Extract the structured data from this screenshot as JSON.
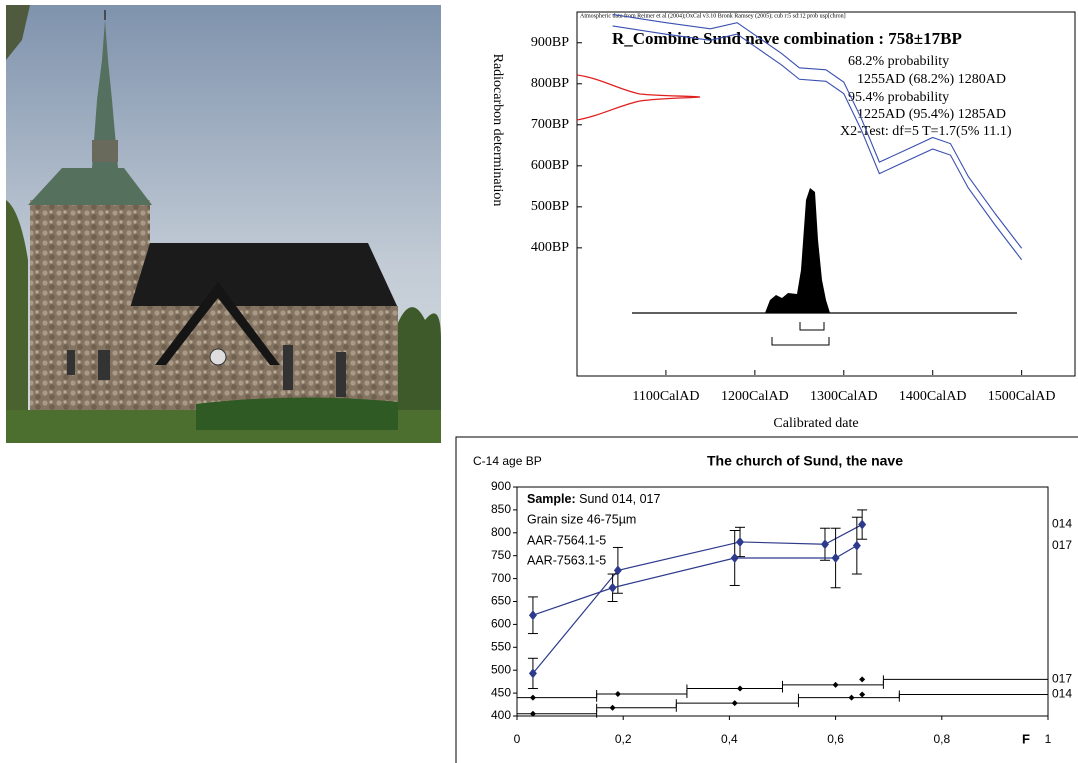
{
  "chart_data": [
    {
      "type": "line",
      "note": "Atmospheric data from Reimer et al (2004);OxCal v3.10 Bronk Ramsey (2005); cub r:5 sd:12 prob usp[chron]",
      "title": "R_Combine Sund nave combination : 758±17BP",
      "annotations": [
        "68.2% probability",
        "1255AD (68.2%) 1280AD",
        "95.4% probability",
        "1225AD (95.4%) 1285AD",
        "X2-Test: df=5 T=1.7(5% 11.1)"
      ],
      "xlabel": "Calibrated date",
      "ylabel": "Radiocarbon determination",
      "x": [
        1040,
        1100,
        1150,
        1180,
        1200,
        1230,
        1250,
        1280,
        1300,
        1320,
        1340,
        1370,
        1400,
        1420,
        1440,
        1470,
        1500
      ],
      "series": [
        {
          "color": "#3a4fb0",
          "values": [
            969,
            949,
            934,
            949,
            919,
            874,
            839,
            834,
            804,
            714,
            609,
            639,
            669,
            654,
            574,
            484,
            399
          ]
        },
        {
          "color": "#3a4fb0",
          "values": [
            941,
            921,
            906,
            921,
            891,
            846,
            811,
            806,
            776,
            686,
            581,
            611,
            641,
            626,
            546,
            456,
            371
          ]
        }
      ],
      "xlim": [
        1000,
        1560
      ],
      "ylim": [
        90,
        975
      ],
      "xticks": [
        {
          "value": 1100,
          "label": "1100CalAD"
        },
        {
          "value": 1200,
          "label": "1200CalAD"
        },
        {
          "value": 1300,
          "label": "1300CalAD"
        },
        {
          "value": 1400,
          "label": "1400CalAD"
        },
        {
          "value": 1500,
          "label": "1500CalAD"
        }
      ],
      "yticks": [
        {
          "value": 400,
          "label": "400BP"
        },
        {
          "value": 500,
          "label": "500BP"
        },
        {
          "value": 600,
          "label": "600BP"
        },
        {
          "value": 700,
          "label": "700BP"
        },
        {
          "value": 800,
          "label": "800BP"
        },
        {
          "value": 900,
          "label": "900BP"
        }
      ]
    },
    {
      "type": "errorbar",
      "title": "The church of Sund, the nave",
      "ylabel": "C-14 age BP",
      "xlabel": "F",
      "sample_box": {
        "label": "Sample:",
        "text": "Sund 014, 017",
        "lines": [
          "Grain size 46-75µm",
          "AAR-7564.1-5",
          "AAR-7563.1-5"
        ]
      },
      "series": [
        {
          "name": "014",
          "color": "#2e3a8c",
          "x": [
            0.03,
            0.19,
            0.42,
            0.58,
            0.65
          ],
          "values": [
            493,
            718,
            780,
            775,
            818
          ],
          "errors": [
            33,
            50,
            32,
            35,
            32
          ]
        },
        {
          "name": "017",
          "color": "#2e3a8c",
          "x": [
            0.03,
            0.18,
            0.41,
            0.6,
            0.64
          ],
          "values": [
            620,
            680,
            745,
            745,
            772
          ],
          "errors": [
            40,
            30,
            60,
            65,
            62
          ]
        }
      ],
      "range_series": [
        {
          "name": "017",
          "color": "#000000",
          "x": [
            0.03,
            0.19,
            0.42,
            0.6,
            0.65
          ],
          "values": [
            440,
            448,
            460,
            468,
            480
          ],
          "x_low": [
            0,
            0.15,
            0.32,
            0.5,
            0.69
          ],
          "x_high": [
            0.15,
            0.32,
            0.5,
            0.69,
            1
          ]
        },
        {
          "name": "014",
          "color": "#000000",
          "x": [
            0.03,
            0.18,
            0.41,
            0.63,
            0.65
          ],
          "values": [
            405,
            418,
            428,
            440,
            447
          ],
          "x_low": [
            0,
            0.15,
            0.3,
            0.53,
            0.72
          ],
          "x_high": [
            0.15,
            0.3,
            0.53,
            0.72,
            1
          ]
        }
      ],
      "xlim": [
        0,
        1
      ],
      "ylim": [
        400,
        900
      ],
      "xticks": [
        0,
        {
          "value": 0.2,
          "label": "0,2"
        },
        {
          "value": 0.4,
          "label": "0,4"
        },
        {
          "value": 0.6,
          "label": "0,6"
        },
        {
          "value": 0.8,
          "label": "0,8"
        },
        1
      ],
      "yticks": [
        400,
        450,
        500,
        550,
        600,
        650,
        700,
        750,
        800,
        850,
        900
      ]
    }
  ]
}
